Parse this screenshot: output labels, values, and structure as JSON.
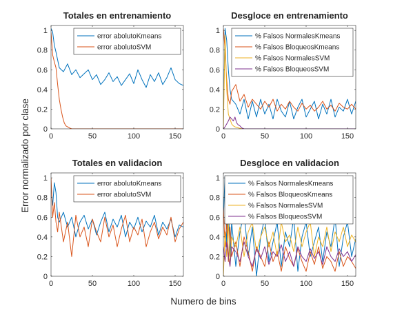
{
  "figure": {
    "ylabel": "Error normalizado por clase",
    "xlabel": "Numero de bins"
  },
  "chart_data": [
    {
      "type": "line",
      "title": "Totales en entrenamiento",
      "xlim": [
        0,
        160
      ],
      "ylim": [
        0,
        1.05
      ],
      "xticks": [
        0,
        50,
        100,
        150
      ],
      "yticks": [
        0,
        0.2,
        0.4,
        0.6,
        0.8,
        1
      ],
      "legend_placement": "top-right",
      "series": [
        {
          "name": "error abolutoKmeans",
          "color": "#0072BD",
          "x": [
            0,
            2,
            4,
            6,
            8,
            10,
            15,
            20,
            25,
            30,
            35,
            40,
            45,
            50,
            55,
            60,
            65,
            70,
            75,
            80,
            85,
            90,
            95,
            100,
            105,
            110,
            115,
            120,
            125,
            130,
            135,
            140,
            145,
            150,
            155,
            160
          ],
          "y": [
            1.02,
            0.98,
            0.85,
            0.78,
            0.7,
            0.62,
            0.58,
            0.66,
            0.55,
            0.6,
            0.52,
            0.56,
            0.6,
            0.5,
            0.55,
            0.45,
            0.5,
            0.57,
            0.48,
            0.53,
            0.44,
            0.5,
            0.56,
            0.46,
            0.6,
            0.5,
            0.42,
            0.55,
            0.48,
            0.57,
            0.45,
            0.52,
            0.62,
            0.5,
            0.46,
            0.44
          ]
        },
        {
          "name": "error abolutoSVM",
          "color": "#D95319",
          "x": [
            0,
            2,
            4,
            6,
            8,
            10,
            12,
            14,
            16,
            18,
            20,
            22,
            25,
            30,
            40,
            60,
            80,
            100,
            120,
            140,
            160
          ],
          "y": [
            0.98,
            0.75,
            0.68,
            0.62,
            0.45,
            0.3,
            0.2,
            0.12,
            0.06,
            0.03,
            0.02,
            0.01,
            0.0,
            0.0,
            0.0,
            0.0,
            0.0,
            0.0,
            0.0,
            0.0,
            0.0
          ]
        }
      ]
    },
    {
      "type": "line",
      "title": "Desgloce en entrenamiento",
      "xlim": [
        0,
        160
      ],
      "ylim": [
        0,
        1.05
      ],
      "xticks": [
        0,
        50,
        100,
        150
      ],
      "yticks": [
        0,
        0.2,
        0.4,
        0.6,
        0.8,
        1
      ],
      "legend_placement": "top-right",
      "series": [
        {
          "name": "% Falsos NormalesKmeans",
          "color": "#0072BD",
          "x": [
            0,
            2,
            4,
            6,
            8,
            10,
            15,
            20,
            25,
            30,
            35,
            40,
            45,
            50,
            55,
            60,
            65,
            70,
            75,
            80,
            85,
            90,
            95,
            100,
            105,
            110,
            115,
            120,
            125,
            130,
            135,
            140,
            145,
            150,
            155,
            160
          ],
          "y": [
            0.1,
            1.02,
            0.9,
            0.6,
            0.4,
            0.3,
            0.25,
            0.15,
            0.3,
            0.1,
            0.28,
            0.12,
            0.3,
            0.15,
            0.25,
            0.1,
            0.3,
            0.18,
            0.12,
            0.28,
            0.1,
            0.22,
            0.3,
            0.12,
            0.2,
            0.28,
            0.1,
            0.25,
            0.15,
            0.3,
            0.12,
            0.22,
            0.18,
            0.3,
            0.15,
            0.28
          ]
        },
        {
          "name": "% Falsos BloqueosKmeans",
          "color": "#D95319",
          "x": [
            0,
            2,
            4,
            6,
            8,
            10,
            15,
            20,
            25,
            30,
            35,
            40,
            45,
            50,
            55,
            60,
            65,
            70,
            75,
            80,
            85,
            90,
            95,
            100,
            105,
            110,
            115,
            120,
            125,
            130,
            135,
            140,
            145,
            150,
            155,
            160
          ],
          "y": [
            1.02,
            0.8,
            0.5,
            0.3,
            0.25,
            0.38,
            0.45,
            0.28,
            0.35,
            0.22,
            0.3,
            0.25,
            0.2,
            0.28,
            0.22,
            0.3,
            0.18,
            0.25,
            0.2,
            0.28,
            0.22,
            0.18,
            0.26,
            0.2,
            0.24,
            0.18,
            0.22,
            0.28,
            0.2,
            0.24,
            0.18,
            0.26,
            0.22,
            0.2,
            0.25,
            0.2
          ]
        },
        {
          "name": "% Falsos NormalesSVM",
          "color": "#EDB120",
          "x": [
            0,
            2,
            4,
            6,
            8,
            10,
            12,
            14,
            18,
            22,
            25,
            30,
            160
          ],
          "y": [
            0.0,
            0.95,
            0.4,
            0.15,
            0.1,
            0.05,
            0.03,
            0.02,
            0.01,
            0.0,
            0.0,
            0.0,
            0.0
          ]
        },
        {
          "name": "% Falsos BloqueosSVM",
          "color": "#7E2F8E",
          "x": [
            0,
            2,
            4,
            6,
            8,
            10,
            12,
            14,
            16,
            18,
            20,
            22,
            25,
            30,
            160
          ],
          "y": [
            0.0,
            0.02,
            0.05,
            0.08,
            0.12,
            0.1,
            0.08,
            0.12,
            0.06,
            0.04,
            0.03,
            0.01,
            0.0,
            0.0,
            0.0
          ]
        }
      ]
    },
    {
      "type": "line",
      "title": "Totales en validacion",
      "xlim": [
        0,
        160
      ],
      "ylim": [
        0,
        1.05
      ],
      "xticks": [
        0,
        50,
        100,
        150
      ],
      "yticks": [
        0,
        0.2,
        0.4,
        0.6,
        0.8,
        1
      ],
      "legend_placement": "top-right",
      "series": [
        {
          "name": "error abolutoKmeans",
          "color": "#0072BD",
          "x": [
            0,
            2,
            4,
            6,
            8,
            10,
            15,
            20,
            25,
            30,
            35,
            40,
            45,
            50,
            55,
            60,
            65,
            70,
            75,
            80,
            85,
            90,
            95,
            100,
            105,
            110,
            115,
            120,
            125,
            130,
            135,
            140,
            145,
            150,
            155,
            160
          ],
          "y": [
            0.9,
            0.72,
            0.95,
            0.85,
            0.6,
            0.55,
            0.65,
            0.5,
            0.6,
            0.4,
            0.55,
            0.62,
            0.48,
            0.58,
            0.42,
            0.55,
            0.65,
            0.45,
            0.58,
            0.5,
            0.62,
            0.4,
            0.55,
            0.48,
            0.6,
            0.45,
            0.56,
            0.5,
            0.62,
            0.42,
            0.55,
            0.48,
            0.58,
            0.4,
            0.52,
            0.5
          ]
        },
        {
          "name": "error abolutoSVM",
          "color": "#D95319",
          "x": [
            0,
            2,
            4,
            6,
            8,
            10,
            15,
            20,
            25,
            30,
            35,
            40,
            45,
            50,
            55,
            60,
            65,
            70,
            75,
            80,
            85,
            90,
            95,
            100,
            105,
            110,
            115,
            120,
            125,
            130,
            135,
            140,
            145,
            150,
            155,
            160
          ],
          "y": [
            1.0,
            0.6,
            0.75,
            0.55,
            0.45,
            0.65,
            0.35,
            0.55,
            0.2,
            0.62,
            0.4,
            0.5,
            0.3,
            0.58,
            0.45,
            0.35,
            0.6,
            0.4,
            0.52,
            0.3,
            0.48,
            0.62,
            0.35,
            0.5,
            0.42,
            0.58,
            0.3,
            0.45,
            0.55,
            0.38,
            0.5,
            0.42,
            0.6,
            0.35,
            0.48,
            0.55
          ]
        }
      ]
    },
    {
      "type": "line",
      "title": "Desgloce en validacion",
      "xlim": [
        0,
        160
      ],
      "ylim": [
        0,
        1.05
      ],
      "xticks": [
        0,
        50,
        100,
        150
      ],
      "yticks": [
        0,
        0.2,
        0.4,
        0.6,
        0.8,
        1
      ],
      "legend_placement": "top-right",
      "series": [
        {
          "name": "% Falsos NormalesKmeans",
          "color": "#0072BD",
          "x": [
            0,
            2,
            4,
            6,
            8,
            10,
            15,
            20,
            25,
            30,
            35,
            40,
            45,
            50,
            55,
            60,
            65,
            70,
            75,
            80,
            85,
            90,
            95,
            100,
            105,
            110,
            115,
            120,
            125,
            130,
            135,
            140,
            145,
            150,
            155,
            160
          ],
          "y": [
            0.6,
            1.02,
            0.3,
            0.8,
            0.2,
            0.55,
            0.1,
            0.45,
            0.65,
            0.2,
            0.5,
            0.0,
            0.4,
            0.6,
            0.15,
            0.35,
            0.55,
            0.1,
            0.45,
            0.3,
            0.6,
            0.05,
            0.4,
            0.55,
            0.2,
            0.35,
            0.5,
            0.15,
            0.45,
            0.3,
            0.6,
            0.1,
            0.4,
            0.55,
            0.2,
            0.38
          ]
        },
        {
          "name": "% Falsos BloqueosKmeans",
          "color": "#D95319",
          "x": [
            0,
            2,
            4,
            6,
            8,
            10,
            15,
            20,
            25,
            30,
            35,
            40,
            45,
            50,
            55,
            60,
            65,
            70,
            75,
            80,
            85,
            90,
            95,
            100,
            105,
            110,
            115,
            120,
            125,
            130,
            135,
            140,
            145,
            150,
            155,
            160
          ],
          "y": [
            0.7,
            0.3,
            0.55,
            0.15,
            0.5,
            0.2,
            0.35,
            0.1,
            0.4,
            0.25,
            0.05,
            0.3,
            0.2,
            0.1,
            0.35,
            0.15,
            0.25,
            0.05,
            0.3,
            0.18,
            0.1,
            0.28,
            0.15,
            0.05,
            0.25,
            0.12,
            0.3,
            0.08,
            0.2,
            0.15,
            0.05,
            0.25,
            0.1,
            0.2,
            0.15,
            0.08
          ]
        },
        {
          "name": "% Falsos NormalesSVM",
          "color": "#EDB120",
          "x": [
            0,
            2,
            4,
            6,
            8,
            10,
            15,
            20,
            25,
            30,
            35,
            40,
            45,
            50,
            55,
            60,
            65,
            70,
            75,
            80,
            85,
            90,
            95,
            100,
            105,
            110,
            115,
            120,
            125,
            130,
            135,
            140,
            145,
            150,
            155,
            160
          ],
          "y": [
            0.0,
            0.45,
            0.2,
            0.55,
            0.1,
            0.4,
            0.3,
            0.5,
            0.2,
            0.45,
            0.55,
            0.25,
            0.4,
            0.5,
            0.3,
            0.45,
            0.2,
            0.55,
            0.35,
            0.42,
            0.25,
            0.5,
            0.3,
            0.45,
            0.55,
            0.2,
            0.4,
            0.3,
            0.5,
            0.25,
            0.45,
            0.35,
            0.5,
            0.3,
            0.42,
            0.35
          ]
        },
        {
          "name": "% Falsos BloqueosSVM",
          "color": "#7E2F8E",
          "x": [
            0,
            2,
            4,
            6,
            8,
            10,
            15,
            20,
            25,
            30,
            35,
            40,
            45,
            50,
            55,
            60,
            65,
            70,
            75,
            80,
            85,
            90,
            95,
            100,
            105,
            110,
            115,
            120,
            125,
            130,
            135,
            140,
            145,
            150,
            155,
            160
          ],
          "y": [
            0.3,
            0.15,
            0.35,
            0.2,
            0.1,
            0.3,
            0.25,
            0.15,
            0.35,
            0.2,
            0.1,
            0.28,
            0.18,
            0.3,
            0.12,
            0.25,
            0.2,
            0.32,
            0.15,
            0.25,
            0.1,
            0.3,
            0.2,
            0.15,
            0.28,
            0.18,
            0.25,
            0.12,
            0.3,
            0.2,
            0.15,
            0.28,
            0.2,
            0.25,
            0.15,
            0.22
          ]
        }
      ]
    }
  ]
}
